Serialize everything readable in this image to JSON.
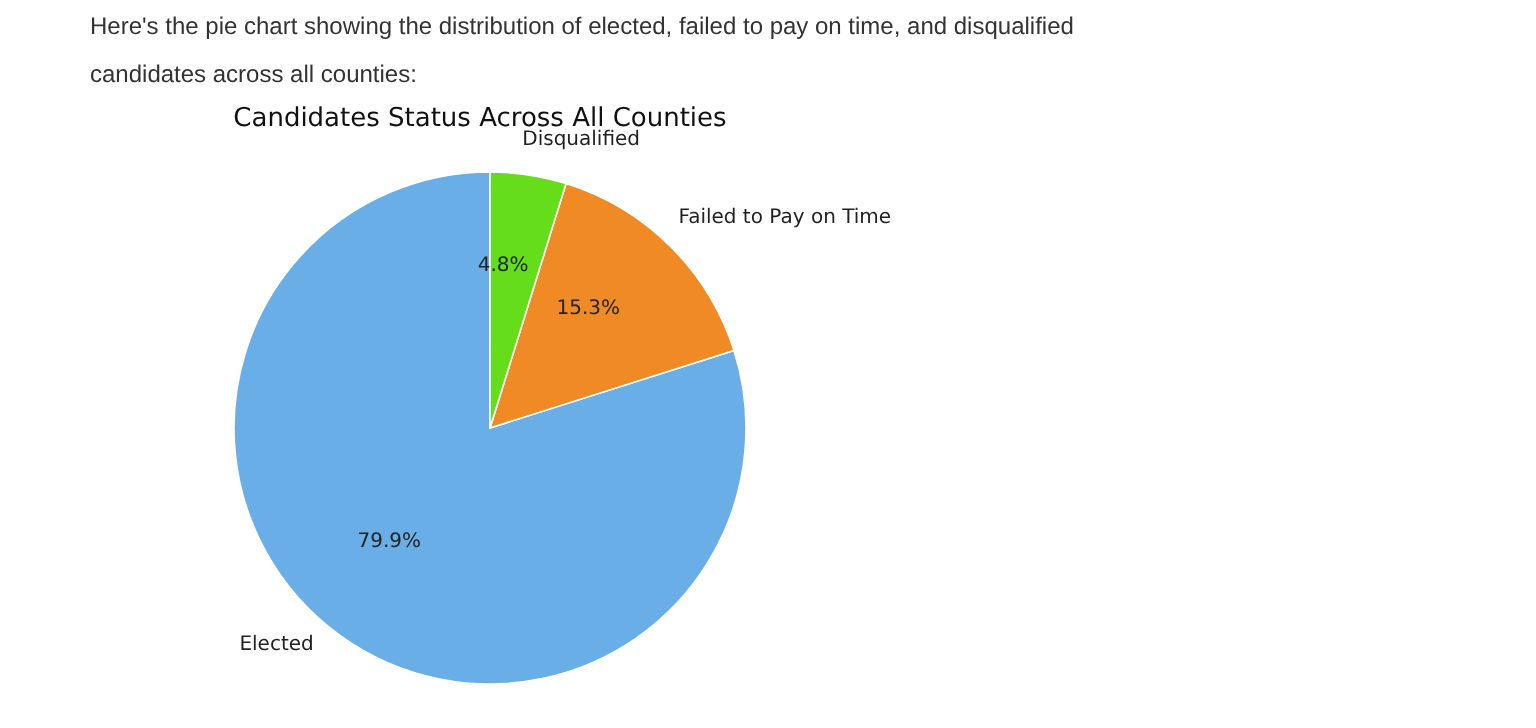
{
  "chart_data": {
    "type": "pie",
    "title": "Candidates Status Across All Counties",
    "annotations": [
      "Here's the pie chart showing the distribution of elected, failed to pay on time, and disqualified candidates across all counties:"
    ],
    "categories": [
      "Elected",
      "Failed to Pay on Time",
      "Disqualified"
    ],
    "values": [
      79.9,
      15.3,
      4.8
    ],
    "value_labels": [
      "79.9%",
      "15.3%",
      "4.8%"
    ],
    "colors": [
      "#6aaee8",
      "#f08a24",
      "#66dd1a"
    ]
  }
}
